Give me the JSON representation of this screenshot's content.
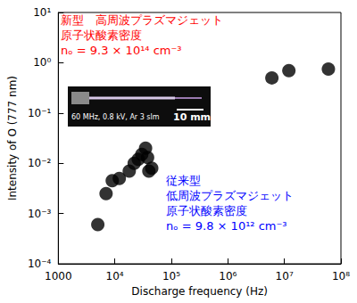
{
  "chart_data": {
    "type": "scatter",
    "x_label": "Discharge frequency (Hz)",
    "y_label": "Intensity of O (777 nm)",
    "log": true,
    "grid": false,
    "marker": "circle",
    "color": "#000000",
    "x": [
      5000,
      7000,
      9000,
      12000,
      18000,
      22000,
      26000,
      30000,
      35000,
      38000,
      40000,
      45000,
      6000000,
      12000000,
      60000000
    ],
    "values": [
      0.0006,
      0.0025,
      0.0045,
      0.005,
      0.007,
      0.01,
      0.012,
      0.015,
      0.02,
      0.013,
      0.007,
      0.008,
      0.5,
      0.7,
      0.75
    ],
    "xlim": [
      1000,
      100000000
    ],
    "ylim": [
      0.0001,
      10
    ],
    "xticks": [
      1000,
      {
        "value": 10000,
        "label": "10⁴"
      },
      {
        "value": 100000,
        "label": "10⁵"
      },
      {
        "value": 1000000,
        "label": "10⁶"
      },
      {
        "value": 10000000,
        "label": "10⁷"
      },
      {
        "value": 100000000,
        "label": "10⁸"
      }
    ],
    "yticks": [
      {
        "value": 0.0001,
        "label": "10⁻⁴"
      },
      {
        "value": 0.001,
        "label": "10⁻³"
      },
      {
        "value": 0.01,
        "label": "10⁻²"
      },
      {
        "value": 0.1,
        "label": "10⁻¹"
      },
      {
        "value": 1,
        "label": "10⁰"
      },
      {
        "value": 10,
        "label": "10¹"
      }
    ],
    "annotations": [
      {
        "color": "#ff0000",
        "text": [
          "新型　高周波プラズマジェット",
          "原子状酸素密度",
          "nₒ = 9.3 × 10¹⁴ cm⁻³"
        ]
      },
      {
        "color": "#0000ff",
        "text": [
          "従来型",
          "低周波プラズマジェット",
          "原子状酸素密度",
          "nₒ = 9.8 × 10¹² cm⁻³"
        ]
      }
    ],
    "inset": {
      "caption": "60 MHz, 0.8 kV, Ar 3 slm",
      "scale_bar": "10 mm"
    }
  }
}
